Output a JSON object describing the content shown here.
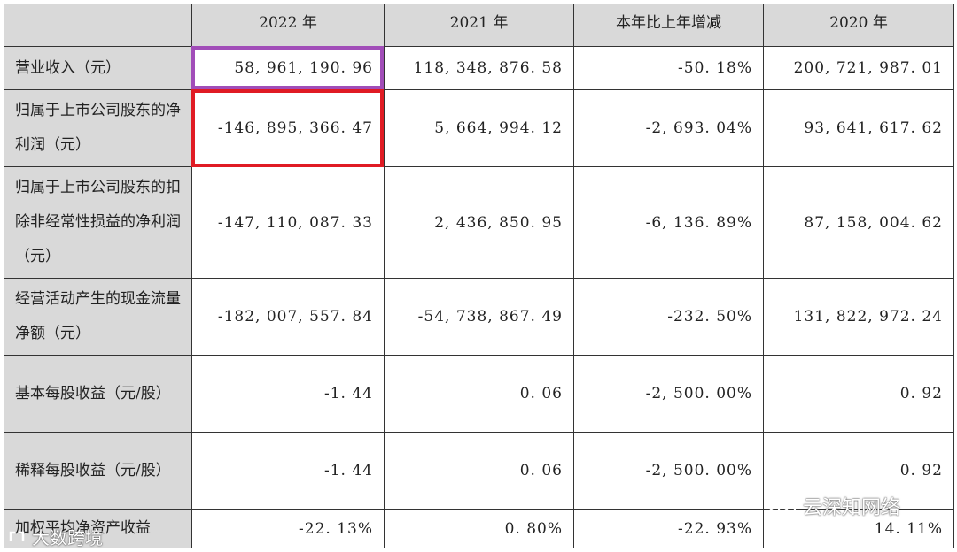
{
  "table": {
    "headers": [
      "",
      "2022 年",
      "2021 年",
      "本年比上年增减",
      "2020 年"
    ],
    "rows": [
      {
        "label": "营业收入（元）",
        "values": [
          "58, 961, 190. 96",
          "118, 348, 876. 58",
          "-50. 18%",
          "200, 721, 987. 01"
        ]
      },
      {
        "label": "归属于上市公司股东的净利润（元）",
        "values": [
          "-146, 895, 366. 47",
          "5, 664, 994. 12",
          "-2, 693. 04%",
          "93, 641, 617. 62"
        ]
      },
      {
        "label": "归属于上市公司股东的扣除非经常性损益的净利润（元）",
        "values": [
          "-147, 110, 087. 33",
          "2, 436, 850. 95",
          "-6, 136. 89%",
          "87, 158, 004. 62"
        ]
      },
      {
        "label": "经营活动产生的现金流量净额（元）",
        "values": [
          "-182, 007, 557. 84",
          "-54, 738, 867. 49",
          "-232. 50%",
          "131, 822, 972. 24"
        ]
      },
      {
        "label": "基本每股收益（元/股）",
        "values": [
          "-1. 44",
          "0. 06",
          "-2, 500. 00%",
          "0. 92"
        ]
      },
      {
        "label": "稀释每股收益（元/股）",
        "values": [
          "-1. 44",
          "0. 06",
          "-2, 500. 00%",
          "0. 92"
        ]
      },
      {
        "label": "加权平均净资产收益",
        "values": [
          "-22. 13%",
          "0. 80%",
          "-22. 93%",
          "14. 11%"
        ]
      }
    ]
  },
  "highlights": {
    "purple": "#a14db8",
    "red": "#e01b24"
  },
  "watermarks": {
    "right": "云深知网络",
    "left": "大数跨境",
    "right_icon": "wechat-icon",
    "left_icon": "logo-icon"
  }
}
